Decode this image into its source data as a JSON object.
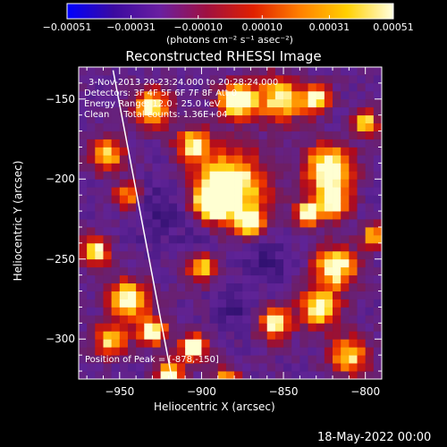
{
  "chart_data": {
    "type": "heatmap",
    "title": "Reconstructed RHESSI Image",
    "xlabel": "Heliocentric X (arcsec)",
    "ylabel": "Heliocentric Y (arcsec)",
    "xlim": [
      -975,
      -790
    ],
    "ylim": [
      -325,
      -130
    ],
    "x_ticks": [
      -950,
      -900,
      -850,
      -800
    ],
    "x_tick_labels": [
      "−950",
      "−900",
      "−850",
      "−800"
    ],
    "y_ticks": [
      -300,
      -250,
      -200,
      -150
    ],
    "y_tick_labels": [
      "−300",
      "−250",
      "−200",
      "−150"
    ],
    "colorbar": {
      "range": [
        -0.00051,
        0.00051
      ],
      "tick_values": [
        -0.00051,
        -0.00031,
        -0.0001,
        0.0001,
        0.00031,
        0.00051
      ],
      "tick_labels": [
        "−0.00051",
        "−0.00031",
        "−0.00010",
        "0.00010",
        "0.00031",
        "0.00051"
      ],
      "units": "(photons cm⁻² s⁻¹ asec⁻²)",
      "colors": [
        "#0000ff",
        "#3b0aa0",
        "#6a1fa0",
        "#a01040",
        "#e02000",
        "#ff8000",
        "#ffd000",
        "#ffffe0"
      ]
    },
    "info_lines": [
      "3-Nov-2013 20:23:24.000 to 20:28:24.000",
      "Detectors: 3F 4F 5F 6F 7F 8F Att 0",
      "Energy Range: 12.0 - 25.0 keV",
      "Clean     Total counts: 1.36E+04"
    ],
    "peak_annotation": "Position of Peak = [-878,-150]",
    "limb_line": [
      [
        -954,
        -132
      ],
      [
        -918,
        -325
      ]
    ],
    "blobs": [
      {
        "x": -883,
        "y": -205,
        "r": 22,
        "v": 0.9
      },
      {
        "x": -893,
        "y": -214,
        "r": 9,
        "v": 1.0
      },
      {
        "x": -870,
        "y": -228,
        "r": 8,
        "v": 0.85
      },
      {
        "x": -822,
        "y": -193,
        "r": 14,
        "v": 0.95
      },
      {
        "x": -820,
        "y": -214,
        "r": 10,
        "v": 0.85
      },
      {
        "x": -835,
        "y": -222,
        "r": 8,
        "v": 0.8
      },
      {
        "x": -818,
        "y": -255,
        "r": 13,
        "v": 0.8
      },
      {
        "x": -828,
        "y": -280,
        "r": 12,
        "v": 0.8
      },
      {
        "x": -855,
        "y": -290,
        "r": 10,
        "v": 0.75
      },
      {
        "x": -810,
        "y": -310,
        "r": 12,
        "v": 0.7
      },
      {
        "x": -852,
        "y": -150,
        "r": 14,
        "v": 0.75
      },
      {
        "x": -878,
        "y": -150,
        "r": 11,
        "v": 1.0
      },
      {
        "x": -830,
        "y": -150,
        "r": 9,
        "v": 0.7
      },
      {
        "x": -930,
        "y": -155,
        "r": 12,
        "v": 0.75
      },
      {
        "x": -905,
        "y": -178,
        "r": 10,
        "v": 0.7
      },
      {
        "x": -958,
        "y": -185,
        "r": 10,
        "v": 0.7
      },
      {
        "x": -945,
        "y": -210,
        "r": 8,
        "v": 0.65
      },
      {
        "x": -965,
        "y": -245,
        "r": 9,
        "v": 0.75
      },
      {
        "x": -945,
        "y": -275,
        "r": 12,
        "v": 0.8
      },
      {
        "x": -955,
        "y": -300,
        "r": 10,
        "v": 0.7
      },
      {
        "x": -930,
        "y": -295,
        "r": 9,
        "v": 0.8
      },
      {
        "x": -905,
        "y": -305,
        "r": 8,
        "v": 0.9
      },
      {
        "x": -920,
        "y": -322,
        "r": 8,
        "v": 0.85
      },
      {
        "x": -900,
        "y": -255,
        "r": 9,
        "v": 0.7
      },
      {
        "x": -885,
        "y": -325,
        "r": 8,
        "v": 0.6
      },
      {
        "x": -795,
        "y": -235,
        "r": 7,
        "v": 0.65
      },
      {
        "x": -800,
        "y": -165,
        "r": 8,
        "v": 0.7
      }
    ],
    "cold_spots": [
      {
        "x": -925,
        "y": -220,
        "r": 20
      },
      {
        "x": -860,
        "y": -250,
        "r": 15
      },
      {
        "x": -880,
        "y": -280,
        "r": 12
      },
      {
        "x": -900,
        "y": -240,
        "r": 10
      }
    ]
  },
  "footer": {
    "date": "18-May-2022 00:00"
  }
}
